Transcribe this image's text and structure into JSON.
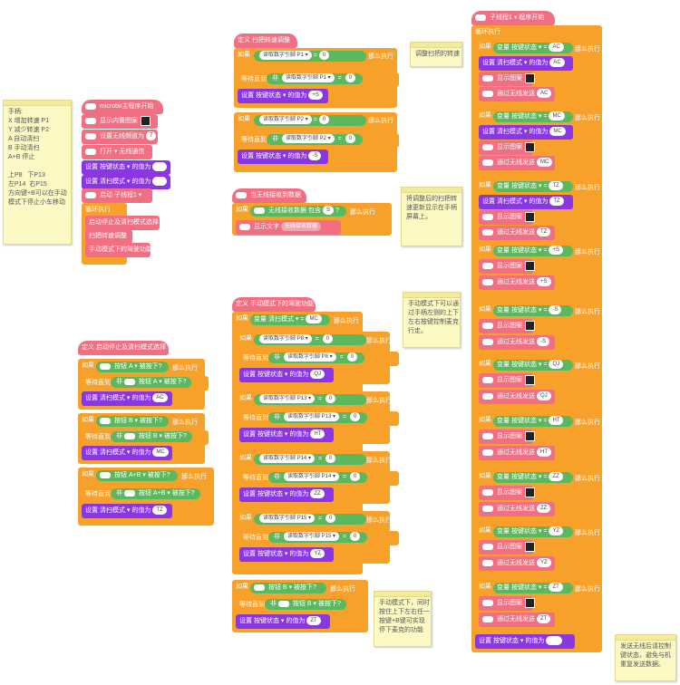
{
  "notes": {
    "left": "手柄:\nX 增加转速 P1\nY 减少转速 P2\nA 自动清扫\nB 手动清扫\nA+B 停止\n\n上P8   下P13\n左P14  右P15\n方向键+B可以在手动\n模式下停止小车移动",
    "scan": "调整扫把的转速",
    "radio": "将调整后的扫把转\n速更新显示在手柄\n屏幕上。",
    "manual": "手动模式下可以通\n过手柄左侧的上下\n左右按键控制麦克\n行走。",
    "manual2": "手动模式下，同时\n按住上下左右任一\n按键+B键可实现\n停下麦克的功能",
    "send": "发送无线后请控制\n键状态，避免与机\n重复发送数据。"
  },
  "main": {
    "hat": "microbit主程序开始",
    "icon": "显示内置图案",
    "radio_group": "设置无线频道为",
    "radio_group_val": "7",
    "radio_on": "打开 ▾  无线通信",
    "set1": "设置  按键状态 ▾  的值为",
    "set2": "设置  清扫模式 ▾  的值为",
    "start": "启动  子线程1 ▾",
    "loop": "循环执行",
    "c1": "启动停止及清扫模式选择",
    "c2": "扫把转速调整",
    "c3": "手动模式下的驾驶功能"
  },
  "scan_fn": {
    "def": "定义  扫把转速调整",
    "if1": "如果",
    "read1": "读取数字引脚  P1 ▾",
    "eq": "=",
    "zero": "0",
    "then": "那么执行",
    "wait": "等待直到",
    "not": "非",
    "read1b": "读取数字引脚  P1 ▾",
    "set_s1": "设置  按键状态 ▾  的值为",
    "v1": "+S",
    "read2": "读取数字引脚  P2 ▾",
    "read2b": "读取数字引脚  P2 ▾",
    "v2": "-S"
  },
  "radio_fn": {
    "hat": "当无线接收到数据",
    "if": "如果",
    "recv": "无线接收数据",
    "contains": "包含",
    "s": "S",
    "q": "?",
    "then": "那么执行",
    "show": "显示文字",
    "show2": "无线接收数据"
  },
  "drive_fn": {
    "def": "定义  手动模式下的驾驶功能",
    "if": "如果",
    "var": "变量 清扫模式 ▾",
    "eq": "=",
    "mc": "MC",
    "then": "那么执行",
    "rows": [
      {
        "pin": "P8 ▾",
        "val": "QJ"
      },
      {
        "pin": "P13 ▾",
        "val": "HT"
      },
      {
        "pin": "P14 ▾",
        "val": "ZZ"
      },
      {
        "pin": "P15 ▾",
        "val": "YZ"
      }
    ],
    "read": "读取数字引脚",
    "wait": "等待直到",
    "not": "非",
    "zero": "0",
    "set": "设置  按键状态 ▾  的值为",
    "btn_b": "按钮  B ▾  被按下?",
    "vt": "ZT"
  },
  "select_fn": {
    "def": "定义  启动停止及清扫模式选择",
    "if": "如果",
    "then": "那么执行",
    "wait": "等待直到",
    "not": "非",
    "set": "设置  清扫模式 ▾  的值为",
    "rows": [
      {
        "btn": "按钮  A ▾  被按下?",
        "val": "AC"
      },
      {
        "btn": "按钮  B ▾  被按下?",
        "val": "MC"
      },
      {
        "btn": "按钮  A+B ▾  被按下?",
        "val": "TZ"
      }
    ]
  },
  "thread": {
    "hat": "子线程1 ▾  程序开始",
    "loop": "循环执行",
    "if": "如果",
    "var": "变量  按键状态 ▾",
    "eq": "=",
    "then": "那么执行",
    "set": "设置  清扫模式 ▾  的值为",
    "show": "显示图案",
    "send": "通过无线发送",
    "rows": [
      "AC",
      "MC",
      "TZ",
      "+S",
      "-S",
      "QJ",
      "HT",
      "ZZ",
      "YZ",
      "ZT"
    ],
    "final": "设置  按键状态 ▾  的值为"
  }
}
